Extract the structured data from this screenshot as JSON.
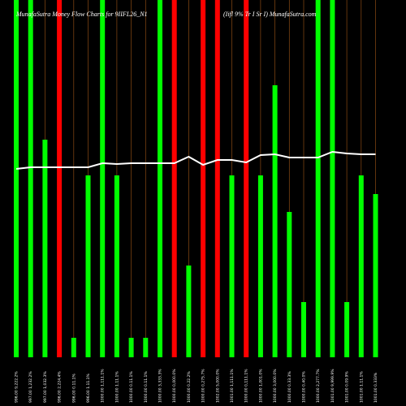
{
  "chart_data": {
    "type": "bar",
    "title": "MunafaSutra  Money Flow  Charts for 9IIFL26_N1",
    "subtitle": "(Iifl 9% Tr I Sr I) MunafaSutra.com",
    "categories": [
      "996.00 9,222.2%",
      "997.00 1,232.2%",
      "997.00 1,032.3%",
      "996.00 2,224.4%",
      "996.00 0.11.1%",
      "996.00 1.11.1%",
      "1000.00 1,111.1%",
      "1000.00 1.11.1%",
      "1000.00 0.11.1%",
      "1000.00 0.11.1%",
      "1000.00 3,333.3%",
      "1000.00 0,000.0%",
      "1000.00 0.22.2%",
      "1000.00 0,275.7%",
      "1002.00 5,000.0%",
      "1001.00 1,111.1%",
      "1000.00 0,111.1%",
      "1000.00 1,001.0%",
      "1000.00 3,000.0%",
      "1000.00 0.33.3%",
      "1000.00 0.40.0%",
      "1000.00 2,277.7%",
      "1001.00 9,999.9%",
      "1001.00 0.09.9%",
      "1001.00 1.11.1%",
      "1001.00 0.333%"
    ],
    "values": [
      440,
      440,
      268,
      440,
      24,
      224,
      440,
      224,
      24,
      24,
      440,
      440,
      113,
      440,
      440,
      224,
      440,
      224,
      335,
      179,
      68,
      440,
      440,
      68,
      224,
      201
    ],
    "colors": [
      "#00ff00",
      "#00ff00",
      "#00ff00",
      "#ff0000",
      "#00ff00",
      "#00ff00",
      "#00ff00",
      "#00ff00",
      "#00ff00",
      "#00ff00",
      "#00ff00",
      "#ff0000",
      "#00ff00",
      "#ff0000",
      "#ff0000",
      "#00ff00",
      "#ff0000",
      "#00ff00",
      "#00ff00",
      "#00ff00",
      "#00ff00",
      "#00ff00",
      "#00ff00",
      "#00ff00",
      "#00ff00",
      "#00ff00"
    ],
    "line": {
      "color": "#ffffff",
      "values": [
        232,
        234,
        234,
        234,
        234,
        234,
        239,
        238,
        239,
        239,
        239,
        239,
        247,
        237,
        243,
        243,
        240,
        249,
        250,
        246,
        246,
        246,
        253,
        251,
        250,
        250
      ]
    },
    "grid_color": "#8b4a14",
    "ylim": [
      0,
      440
    ]
  }
}
